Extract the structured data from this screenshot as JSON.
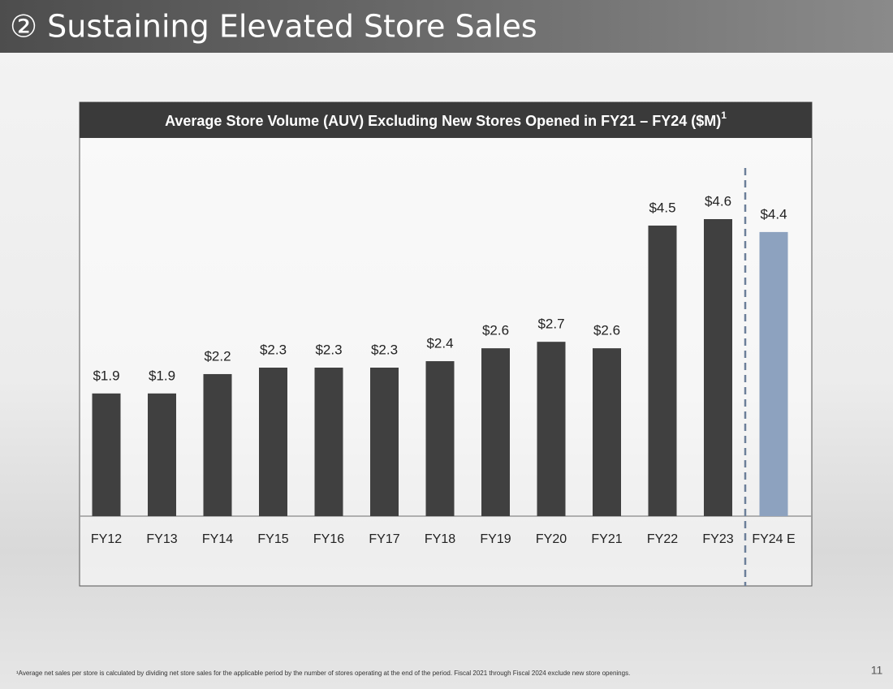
{
  "header": {
    "title": "② Sustaining Elevated Store Sales"
  },
  "chart_data": {
    "type": "bar",
    "title": "Average Store Volume (AUV) Excluding New Stores Opened in FY21 – FY24 ($M)",
    "title_note": "1",
    "categories": [
      "FY12",
      "FY13",
      "FY14",
      "FY15",
      "FY16",
      "FY17",
      "FY18",
      "FY19",
      "FY20",
      "FY21",
      "FY22",
      "FY23",
      "FY24 E"
    ],
    "values": [
      1.9,
      1.9,
      2.2,
      2.3,
      2.3,
      2.3,
      2.4,
      2.6,
      2.7,
      2.6,
      4.5,
      4.6,
      4.4
    ],
    "value_labels": [
      "$1.9",
      "$1.9",
      "$2.2",
      "$2.3",
      "$2.3",
      "$2.3",
      "$2.4",
      "$2.6",
      "$2.7",
      "$2.6",
      "$4.5",
      "$4.6",
      "$4.4"
    ],
    "colors": [
      "#404040",
      "#404040",
      "#404040",
      "#404040",
      "#404040",
      "#404040",
      "#404040",
      "#404040",
      "#404040",
      "#404040",
      "#404040",
      "#404040",
      "#8da2bf"
    ]
  },
  "footnote": "¹Average net sales per store is calculated by dividing net store sales for the applicable period by the number of stores operating at the end of the period. Fiscal 2021 through Fiscal 2024 exclude new store openings.",
  "page_number": "11"
}
